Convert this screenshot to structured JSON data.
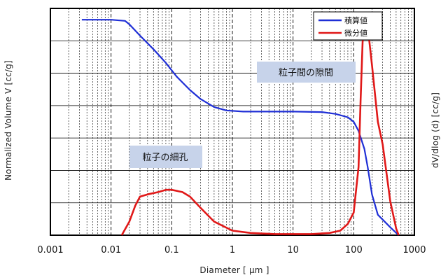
{
  "chart_data": {
    "type": "line",
    "xlabel": "Diameter [ μm ]",
    "ylabel_left": "Normalized Volume V [cc/g]",
    "ylabel_right": "dV/dlog (d) [cc/g]",
    "x_scale": "log",
    "xlim": [
      0.001,
      1000
    ],
    "x_ticks": [
      "0.001",
      "0.01",
      "0.1",
      "1",
      "10",
      "100",
      "1000"
    ],
    "grid": {
      "vertical": "dotted minor log gridlines, dashed at decades",
      "horizontal": "solid lines"
    },
    "legend_position": "top-right",
    "colors": {
      "cumulative": "#1f2fd6",
      "differential": "#e01818",
      "annotation_box": "#c7d3ea"
    },
    "series": [
      {
        "name": "積算値",
        "color": "#1f2fd6",
        "x": [
          0.0033,
          0.005,
          0.01,
          0.017,
          0.02,
          0.03,
          0.05,
          0.08,
          0.12,
          0.2,
          0.3,
          0.5,
          0.8,
          1.5,
          3,
          10,
          30,
          50,
          80,
          100,
          120,
          150,
          170,
          200,
          250,
          400,
          550
        ],
        "y": [
          0.95,
          0.95,
          0.95,
          0.945,
          0.93,
          0.88,
          0.82,
          0.76,
          0.7,
          0.64,
          0.6,
          0.565,
          0.55,
          0.545,
          0.545,
          0.545,
          0.543,
          0.535,
          0.52,
          0.5,
          0.46,
          0.38,
          0.3,
          0.18,
          0.09,
          0.035,
          0.0
        ]
      },
      {
        "name": "微分値",
        "color": "#e01818",
        "x": [
          0.015,
          0.02,
          0.025,
          0.03,
          0.04,
          0.06,
          0.08,
          0.1,
          0.15,
          0.2,
          0.3,
          0.5,
          1,
          2,
          5,
          10,
          20,
          40,
          60,
          80,
          100,
          120,
          130,
          140,
          150,
          170,
          200,
          250,
          300,
          400,
          500,
          550
        ],
        "y": [
          0.0,
          0.06,
          0.13,
          0.17,
          0.18,
          0.19,
          0.2,
          0.2,
          0.19,
          0.17,
          0.12,
          0.06,
          0.02,
          0.01,
          0.005,
          0.005,
          0.005,
          0.01,
          0.02,
          0.05,
          0.1,
          0.3,
          0.6,
          0.85,
          0.95,
          0.92,
          0.75,
          0.5,
          0.4,
          0.15,
          0.03,
          0.0
        ]
      }
    ],
    "annotations": [
      {
        "text": "粒子間の隙間",
        "x": 45,
        "y": 0.83
      },
      {
        "text": "粒子の細孔",
        "x": 0.1,
        "y": 0.4
      }
    ]
  }
}
